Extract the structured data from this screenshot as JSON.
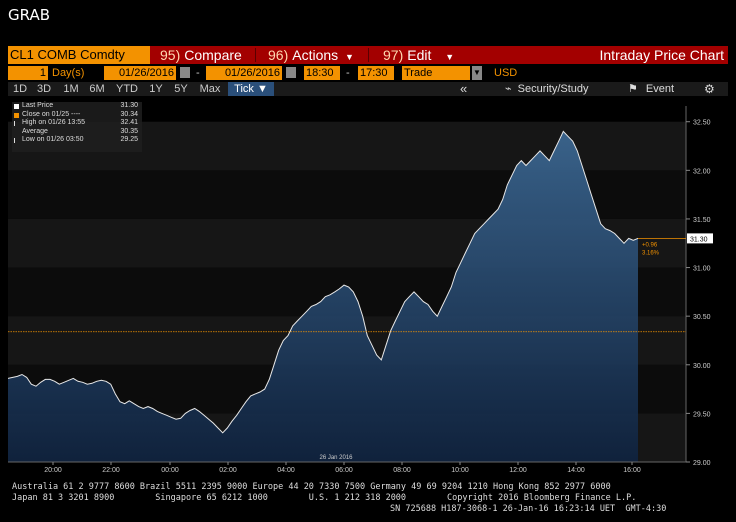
{
  "window": {
    "title": "GRAB"
  },
  "toolbar": {
    "ticker": "CL1 COMB Comdty",
    "compare": {
      "num": "95)",
      "label": "Compare"
    },
    "actions": {
      "num": "96)",
      "label": "Actions"
    },
    "edit": {
      "num": "97)",
      "label": "Edit"
    },
    "chart_title": "Intraday Price Chart"
  },
  "range": {
    "period_count": "1",
    "period_unit": "Day(s)",
    "start_date": "01/26/2016",
    "end_date": "01/26/2016",
    "start_time": "18:30",
    "end_time": "17:30",
    "event_type": "Trade",
    "currency": "USD"
  },
  "tabs": [
    "1D",
    "3D",
    "1M",
    "6M",
    "YTD",
    "1Y",
    "5Y",
    "Max"
  ],
  "tick_selector": "Tick ▼",
  "right_controls": {
    "back": "«",
    "security_study": "Security/Study",
    "event": "Event"
  },
  "legend": [
    {
      "label": "Last Price",
      "value": "31.30",
      "color": "#ffffff"
    },
    {
      "label": "Close on 01/25 ----",
      "value": "30.34",
      "color": "#f39200"
    },
    {
      "label": "High on 01/26 13:55",
      "value": "32.41",
      "color": "#dddddd"
    },
    {
      "label": "Average",
      "value": "30.35",
      "color": "#dddddd"
    },
    {
      "label": "Low on 01/26 03:50",
      "value": "29.25",
      "color": "#dddddd"
    }
  ],
  "last_price_tag": "31.30",
  "change_abs": "+0.96",
  "change_pct": "3.16%",
  "x_date_label": "26 Jan 2016",
  "chart_data": {
    "type": "line",
    "x_ticks": [
      "20:00",
      "22:00",
      "00:00",
      "02:00",
      "04:00",
      "06:00",
      "08:00",
      "10:00",
      "12:00",
      "14:00",
      "16:00"
    ],
    "y_ticks": [
      "29.00",
      "29.50",
      "30.00",
      "30.50",
      "31.00",
      "31.50",
      "32.00",
      "32.50"
    ],
    "ylim": [
      29.0,
      32.6
    ],
    "reference_close": 30.34,
    "series": [
      {
        "values": [
          29.86,
          29.87,
          29.88,
          29.9,
          29.87,
          29.8,
          29.78,
          29.82,
          29.85,
          29.85,
          29.83,
          29.8,
          29.82,
          29.84,
          29.86,
          29.83,
          29.82,
          29.8,
          29.81,
          29.83,
          29.84,
          29.83,
          29.8,
          29.7,
          29.62,
          29.6,
          29.63,
          29.6,
          29.57,
          29.55,
          29.57,
          29.55,
          29.52,
          29.5,
          29.48,
          29.46,
          29.44,
          29.45,
          29.5,
          29.53,
          29.55,
          29.52,
          29.48,
          29.44,
          29.4,
          29.35,
          29.3,
          29.35,
          29.42,
          29.48,
          29.55,
          29.62,
          29.68,
          29.7,
          29.72,
          29.75,
          29.85,
          30.0,
          30.15,
          30.25,
          30.3,
          30.4,
          30.45,
          30.5,
          30.55,
          30.6,
          30.62,
          30.65,
          30.7,
          30.72,
          30.75,
          30.78,
          30.82,
          30.8,
          30.75,
          30.65,
          30.5,
          30.3,
          30.2,
          30.1,
          30.05,
          30.2,
          30.35,
          30.45,
          30.55,
          30.65,
          30.7,
          30.75,
          30.7,
          30.65,
          30.62,
          30.55,
          30.5,
          30.6,
          30.7,
          30.8,
          30.95,
          31.05,
          31.15,
          31.25,
          31.35,
          31.4,
          31.45,
          31.5,
          31.55,
          31.6,
          31.7,
          31.85,
          31.95,
          32.05,
          32.1,
          32.05,
          32.1,
          32.15,
          32.2,
          32.15,
          32.1,
          32.2,
          32.3,
          32.4,
          32.35,
          32.3,
          32.2,
          32.05,
          31.9,
          31.75,
          31.6,
          31.45,
          31.4,
          31.38,
          31.35,
          31.3,
          31.25,
          31.3,
          31.28,
          31.3
        ]
      }
    ]
  },
  "footer": {
    "line1": "Australia 61 2 9777 8600 Brazil 5511 2395 9000 Europe 44 20 7330 7500 Germany 49 69 9204 1210 Hong Kong 852 2977 6000",
    "line2": "Japan 81 3 3201 8900        Singapore 65 6212 1000        U.S. 1 212 318 2000        Copyright 2016 Bloomberg Finance L.P.",
    "line3": "SN 725688 H187-3068-1 26-Jan-16 16:23:14 UET  GMT-4:30"
  }
}
